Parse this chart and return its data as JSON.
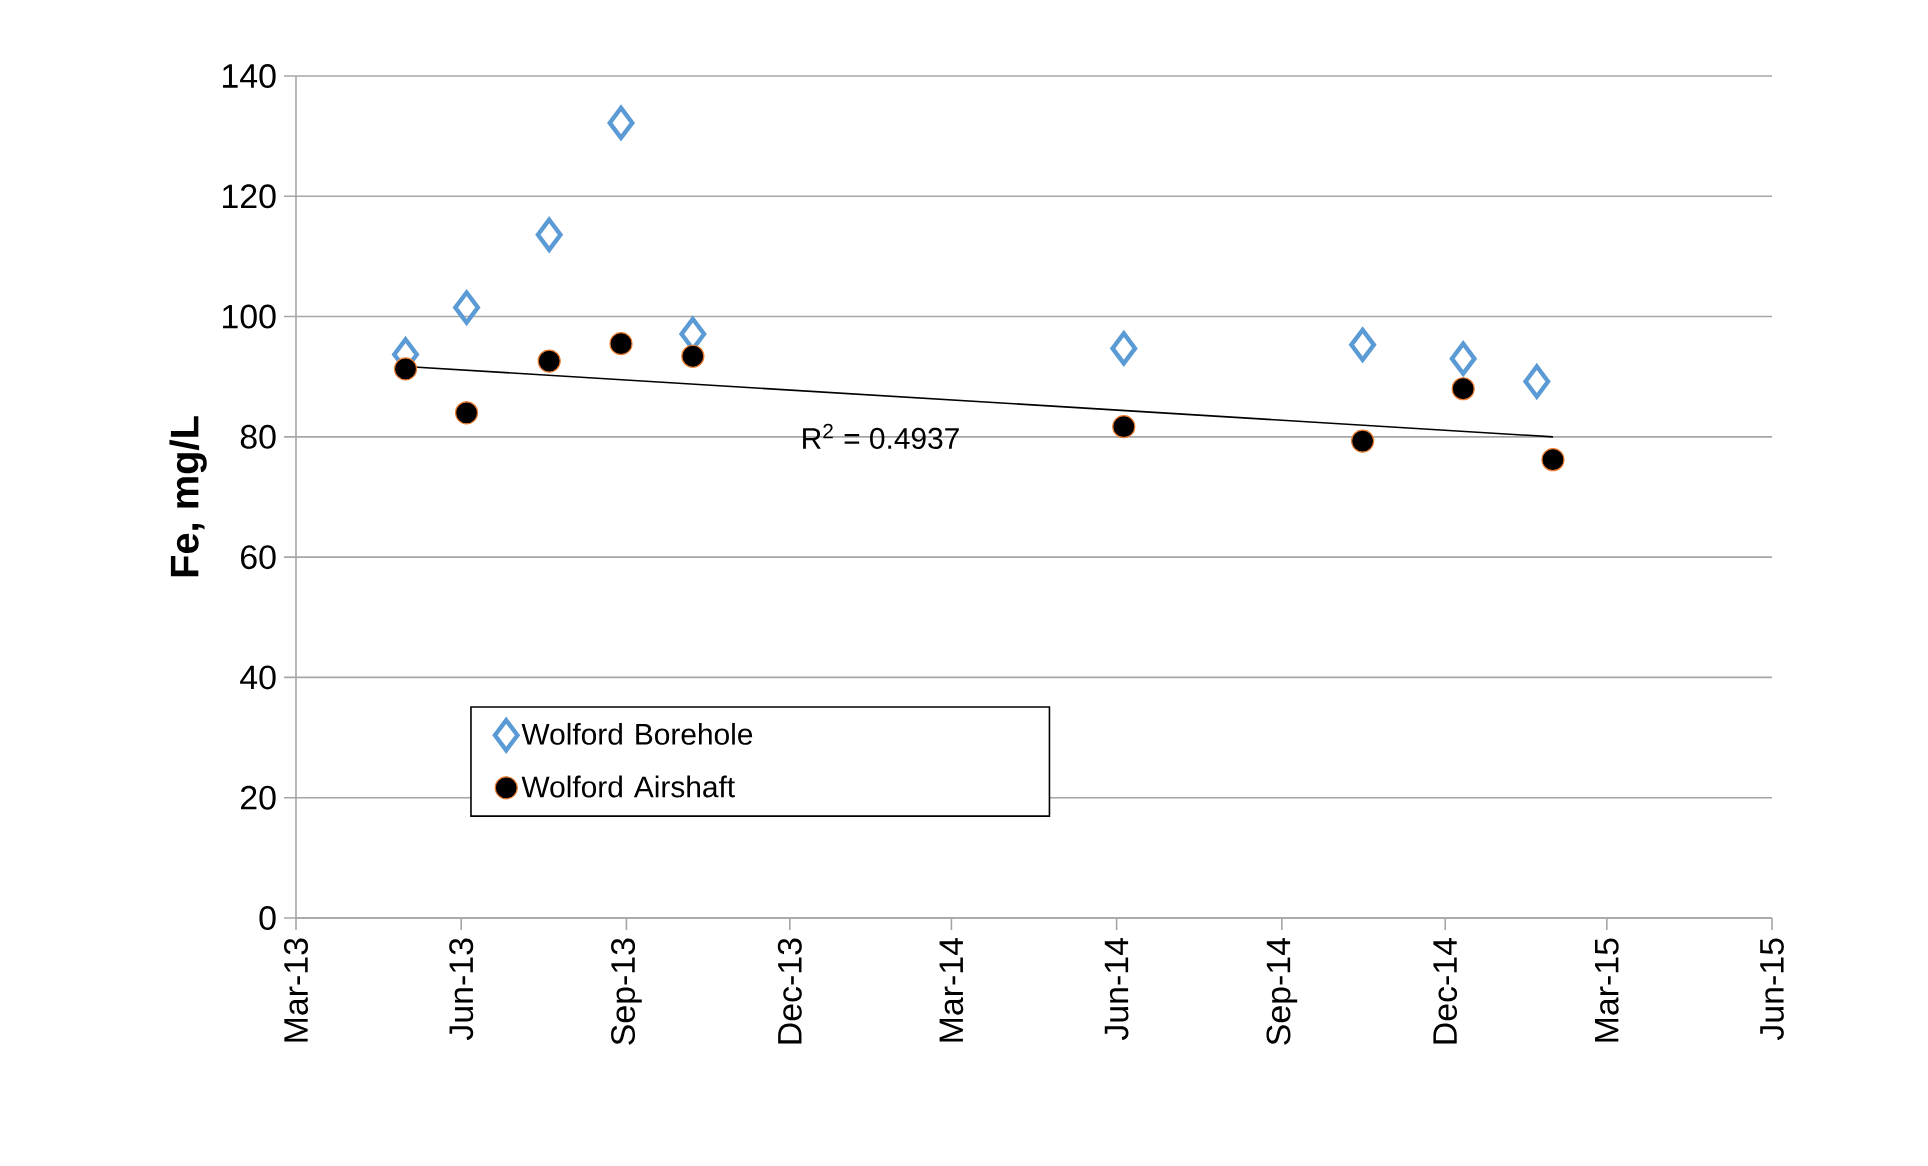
{
  "chart_data": {
    "type": "scatter",
    "ylabel": "Fe, mg/L",
    "xlim": [
      "2013-03-01",
      "2015-06-01"
    ],
    "xticks": [
      {
        "value": "2013-03-01",
        "label": "Mar-13"
      },
      {
        "value": "2013-06-01",
        "label": "Jun-13"
      },
      {
        "value": "2013-09-01",
        "label": "Sep-13"
      },
      {
        "value": "2013-12-01",
        "label": "Dec-13"
      },
      {
        "value": "2014-03-01",
        "label": "Mar-14"
      },
      {
        "value": "2014-06-01",
        "label": "Jun-14"
      },
      {
        "value": "2014-09-01",
        "label": "Sep-14"
      },
      {
        "value": "2014-12-01",
        "label": "Dec-14"
      },
      {
        "value": "2015-03-01",
        "label": "Mar-15"
      },
      {
        "value": "2015-06-01",
        "label": "Jun-15"
      }
    ],
    "ylim": [
      0,
      140
    ],
    "yticks": [
      0,
      20,
      40,
      60,
      80,
      100,
      120,
      140
    ],
    "grid": "y",
    "legend": "bottom left",
    "series": [
      {
        "name": "Wolford Borehole",
        "color": "#5b9bd5",
        "marker": "diamond",
        "x": [
          "2013-05-01",
          "2013-06-04",
          "2013-07-20",
          "2013-08-29",
          "2013-10-08",
          "2014-06-05",
          "2014-10-16",
          "2014-12-11",
          "2015-01-21"
        ],
        "values": [
          93.7,
          101.5,
          113.6,
          132.2,
          97.1,
          94.7,
          95.3,
          93.0,
          89.2
        ]
      },
      {
        "name": "Wolford Airshaft",
        "color": "#000000",
        "marker": "circle",
        "x": [
          "2013-05-01",
          "2013-06-04",
          "2013-07-20",
          "2013-08-29",
          "2013-10-08",
          "2014-06-05",
          "2014-10-16",
          "2014-12-11",
          "2015-01-30"
        ],
        "values": [
          91.3,
          84.0,
          92.6,
          95.5,
          93.4,
          81.7,
          79.3,
          88.0,
          76.2
        ]
      },
      {
        "type": "line",
        "color": "#000000",
        "marker": "none",
        "x": [
          "2013-05-01",
          "2015-01-30"
        ],
        "values": [
          91.7,
          80.0
        ]
      }
    ],
    "annotations": [
      "R$^{2}$ = 0.4937"
    ]
  }
}
